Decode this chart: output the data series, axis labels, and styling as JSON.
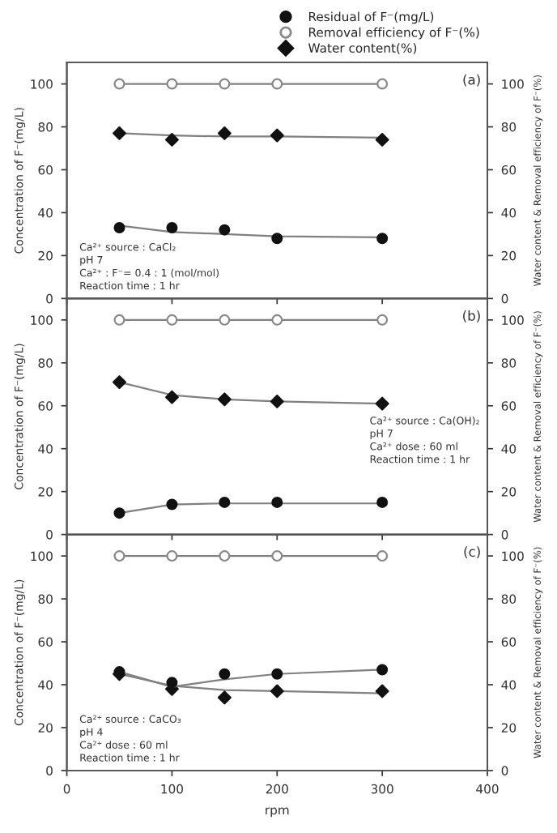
{
  "chart_data": [
    {
      "type": "scatter",
      "x": [
        50,
        100,
        150,
        200,
        300
      ],
      "xlim": [
        0,
        400
      ],
      "xticks": [
        0,
        100,
        200,
        300,
        400
      ],
      "ylim": [
        0,
        110
      ],
      "yticks": [
        0,
        20,
        40,
        60,
        80,
        100
      ],
      "y2lim": [
        0,
        110
      ],
      "y2ticks": [
        0,
        20,
        40,
        60,
        80,
        100
      ],
      "tick_labels": "y",
      "ylabel": "Concentration of F⁻(mg/L)",
      "y2label": "Water content & Removal efficiency of F⁻(%)",
      "legend": "top right",
      "grid": false,
      "series": [
        {
          "name": "Residual of F⁻(mg/L)",
          "color": "#111111",
          "marker": "circle",
          "values": [
            33,
            33,
            32,
            28,
            28
          ]
        },
        {
          "name": "Removal efficiency of F⁻(%)",
          "color": "#ffffff",
          "marker": "circle",
          "axis": "y2",
          "values": [
            100,
            100,
            100,
            100,
            100
          ]
        },
        {
          "name": "Water content(%)",
          "color": "#111111",
          "marker": "diamond",
          "axis": "y2",
          "values": [
            77,
            74,
            77,
            76,
            74
          ]
        },
        {
          "type": "line",
          "color": "#808080",
          "marker": "none",
          "values": [
            34,
            31,
            30,
            29,
            28.5
          ]
        },
        {
          "type": "line",
          "color": "#808080",
          "marker": "none",
          "axis": "y2",
          "values": [
            100,
            100,
            100,
            100,
            100
          ]
        },
        {
          "type": "line",
          "color": "#808080",
          "marker": "none",
          "axis": "y2",
          "values": [
            77,
            76,
            75.5,
            75.5,
            75
          ]
        }
      ],
      "annotations": [
        "(a)",
        "Ca²⁺ source : CaCl₂\npH 7\nCa²⁺ : F⁻= 0.4 : 1 (mol/mol)\nReaction time : 1 hr"
      ]
    },
    {
      "type": "scatter",
      "x": [
        50,
        100,
        150,
        200,
        300
      ],
      "xlim": [
        0,
        400
      ],
      "xticks": [
        0,
        100,
        200,
        300,
        400
      ],
      "ylim": [
        0,
        110
      ],
      "yticks": [
        0,
        20,
        40,
        60,
        80,
        100
      ],
      "y2lim": [
        0,
        110
      ],
      "y2ticks": [
        0,
        20,
        40,
        60,
        80,
        100
      ],
      "tick_labels": "y",
      "ylabel": "Concentration of F⁻(mg/L)",
      "y2label": "Water content & Removal efficiency of F⁻(%)",
      "grid": false,
      "series": [
        {
          "color": "#111111",
          "marker": "circle",
          "values": [
            10,
            14,
            15,
            15,
            15
          ]
        },
        {
          "color": "#ffffff",
          "marker": "circle",
          "axis": "y2",
          "values": [
            100,
            100,
            100,
            100,
            100
          ]
        },
        {
          "color": "#111111",
          "marker": "diamond",
          "axis": "y2",
          "values": [
            71,
            64,
            63,
            62,
            61
          ]
        },
        {
          "type": "line",
          "color": "#808080",
          "marker": "none",
          "values": [
            10,
            14,
            14.5,
            14.5,
            14.5
          ]
        },
        {
          "type": "line",
          "color": "#808080",
          "marker": "none",
          "axis": "y2",
          "values": [
            100,
            100,
            100,
            100,
            100
          ]
        },
        {
          "type": "line",
          "color": "#808080",
          "marker": "none",
          "axis": "y2",
          "values": [
            71,
            65,
            63,
            62,
            61
          ]
        }
      ],
      "annotations": [
        "(b)",
        "Ca²⁺ source : Ca(OH)₂\npH 7\nCa²⁺ dose : 60 ml\nReaction time : 1 hr"
      ]
    },
    {
      "type": "scatter",
      "x": [
        50,
        100,
        150,
        200,
        300
      ],
      "xlim": [
        0,
        400
      ],
      "xticks": [
        0,
        100,
        200,
        300,
        400
      ],
      "ylim": [
        0,
        110
      ],
      "yticks": [
        0,
        20,
        40,
        60,
        80,
        100
      ],
      "y2lim": [
        0,
        110
      ],
      "y2ticks": [
        0,
        20,
        40,
        60,
        80,
        100
      ],
      "xlabel": "rpm",
      "ylabel": "Concentration of F⁻(mg/L)",
      "y2label": "Water content & Removal efficiency of F⁻(%)",
      "grid": false,
      "series": [
        {
          "color": "#111111",
          "marker": "circle",
          "values": [
            46,
            41,
            45,
            45,
            47
          ]
        },
        {
          "color": "#ffffff",
          "marker": "circle",
          "axis": "y2",
          "values": [
            100,
            100,
            100,
            100,
            100
          ]
        },
        {
          "color": "#111111",
          "marker": "diamond",
          "axis": "y2",
          "values": [
            45,
            38,
            34,
            37,
            37
          ]
        },
        {
          "type": "line",
          "color": "#808080",
          "marker": "none",
          "values": [
            46,
            39,
            42.5,
            45,
            47
          ]
        },
        {
          "type": "line",
          "color": "#808080",
          "marker": "none",
          "axis": "y2",
          "values": [
            100,
            100,
            100,
            100,
            100
          ]
        },
        {
          "type": "line",
          "color": "#808080",
          "marker": "none",
          "axis": "y2",
          "values": [
            45,
            39.5,
            37.5,
            37,
            36
          ]
        }
      ],
      "annotations": [
        "(c)",
        "Ca²⁺ source : CaCO₃\npH 4\nCa²⁺ dose : 60 ml\nReaction time : 1 hr"
      ]
    }
  ]
}
